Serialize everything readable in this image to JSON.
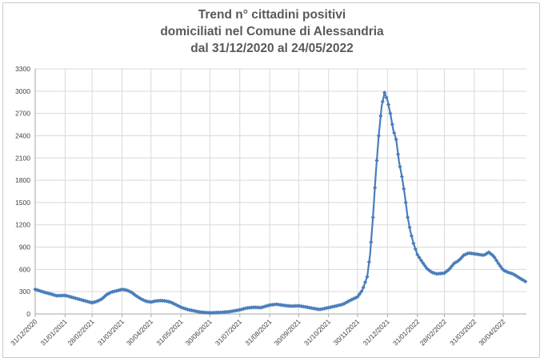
{
  "chart_data": {
    "type": "line",
    "title_lines": [
      "Trend n° cittadini positivi",
      "domiciliati nel Comune di Alessandria",
      "dal 31/12/2020 al 24/05/2022"
    ],
    "xlabel": "",
    "ylabel": "",
    "ylim": [
      0,
      3300
    ],
    "yticks": [
      0,
      300,
      600,
      900,
      1200,
      1500,
      1800,
      2100,
      2400,
      2700,
      3000,
      3300
    ],
    "x_range": [
      "2020-12-31",
      "2022-05-24"
    ],
    "xtick_labels": [
      "31/12/2020",
      "31/01/2021",
      "28/02/2021",
      "31/03/2021",
      "30/04/2021",
      "31/05/2021",
      "30/06/2021",
      "31/07/2021",
      "31/08/2021",
      "30/09/2021",
      "31/10/2021",
      "30/11/2021",
      "31/12/2021",
      "31/01/2022",
      "28/02/2022",
      "31/03/2022",
      "30/04/2022"
    ],
    "xtick_dates": [
      "2020-12-31",
      "2021-01-31",
      "2021-02-28",
      "2021-03-31",
      "2021-04-30",
      "2021-05-31",
      "2021-06-30",
      "2021-07-31",
      "2021-08-31",
      "2021-09-30",
      "2021-10-31",
      "2021-11-30",
      "2021-12-31",
      "2022-01-31",
      "2022-02-28",
      "2022-03-31",
      "2022-04-30"
    ],
    "grid": true,
    "legend": "none",
    "marker": "diamond",
    "series_color": "#4a7ebb",
    "series": [
      {
        "points": [
          [
            "2020-12-31",
            330
          ],
          [
            "2021-01-05",
            310
          ],
          [
            "2021-01-10",
            290
          ],
          [
            "2021-01-16",
            270
          ],
          [
            "2021-01-22",
            245
          ],
          [
            "2021-01-31",
            250
          ],
          [
            "2021-02-07",
            225
          ],
          [
            "2021-02-14",
            200
          ],
          [
            "2021-02-21",
            175
          ],
          [
            "2021-02-28",
            150
          ],
          [
            "2021-03-05",
            170
          ],
          [
            "2021-03-10",
            200
          ],
          [
            "2021-03-15",
            260
          ],
          [
            "2021-03-20",
            295
          ],
          [
            "2021-03-25",
            310
          ],
          [
            "2021-03-31",
            330
          ],
          [
            "2021-04-05",
            320
          ],
          [
            "2021-04-10",
            290
          ],
          [
            "2021-04-15",
            240
          ],
          [
            "2021-04-20",
            200
          ],
          [
            "2021-04-25",
            170
          ],
          [
            "2021-04-30",
            160
          ],
          [
            "2021-05-05",
            175
          ],
          [
            "2021-05-10",
            180
          ],
          [
            "2021-05-15",
            175
          ],
          [
            "2021-05-20",
            160
          ],
          [
            "2021-05-25",
            130
          ],
          [
            "2021-05-31",
            90
          ],
          [
            "2021-06-07",
            60
          ],
          [
            "2021-06-14",
            40
          ],
          [
            "2021-06-20",
            25
          ],
          [
            "2021-06-30",
            15
          ],
          [
            "2021-07-10",
            20
          ],
          [
            "2021-07-20",
            30
          ],
          [
            "2021-07-31",
            55
          ],
          [
            "2021-08-07",
            80
          ],
          [
            "2021-08-15",
            90
          ],
          [
            "2021-08-22",
            85
          ],
          [
            "2021-08-31",
            120
          ],
          [
            "2021-09-07",
            130
          ],
          [
            "2021-09-15",
            115
          ],
          [
            "2021-09-22",
            105
          ],
          [
            "2021-09-30",
            110
          ],
          [
            "2021-10-07",
            95
          ],
          [
            "2021-10-15",
            75
          ],
          [
            "2021-10-22",
            60
          ],
          [
            "2021-10-31",
            85
          ],
          [
            "2021-11-07",
            105
          ],
          [
            "2021-11-15",
            130
          ],
          [
            "2021-11-22",
            180
          ],
          [
            "2021-11-30",
            230
          ],
          [
            "2021-12-05",
            320
          ],
          [
            "2021-12-10",
            500
          ],
          [
            "2021-12-13",
            800
          ],
          [
            "2021-12-16",
            1300
          ],
          [
            "2021-12-19",
            1900
          ],
          [
            "2021-12-22",
            2400
          ],
          [
            "2021-12-25",
            2800
          ],
          [
            "2021-12-28",
            2980
          ],
          [
            "2021-12-31",
            2880
          ],
          [
            "2022-01-03",
            2700
          ],
          [
            "2022-01-06",
            2480
          ],
          [
            "2022-01-09",
            2350
          ],
          [
            "2022-01-12",
            2050
          ],
          [
            "2022-01-15",
            1850
          ],
          [
            "2022-01-18",
            1600
          ],
          [
            "2022-01-21",
            1300
          ],
          [
            "2022-01-24",
            1100
          ],
          [
            "2022-01-27",
            950
          ],
          [
            "2022-01-31",
            800
          ],
          [
            "2022-02-05",
            700
          ],
          [
            "2022-02-10",
            610
          ],
          [
            "2022-02-15",
            560
          ],
          [
            "2022-02-20",
            540
          ],
          [
            "2022-02-28",
            550
          ],
          [
            "2022-03-05",
            600
          ],
          [
            "2022-03-10",
            680
          ],
          [
            "2022-03-15",
            720
          ],
          [
            "2022-03-20",
            790
          ],
          [
            "2022-03-25",
            820
          ],
          [
            "2022-03-31",
            810
          ],
          [
            "2022-04-05",
            800
          ],
          [
            "2022-04-10",
            790
          ],
          [
            "2022-04-15",
            830
          ],
          [
            "2022-04-20",
            780
          ],
          [
            "2022-04-25",
            680
          ],
          [
            "2022-04-30",
            590
          ],
          [
            "2022-05-05",
            560
          ],
          [
            "2022-05-10",
            540
          ],
          [
            "2022-05-15",
            500
          ],
          [
            "2022-05-20",
            460
          ],
          [
            "2022-05-24",
            430
          ]
        ]
      }
    ]
  }
}
